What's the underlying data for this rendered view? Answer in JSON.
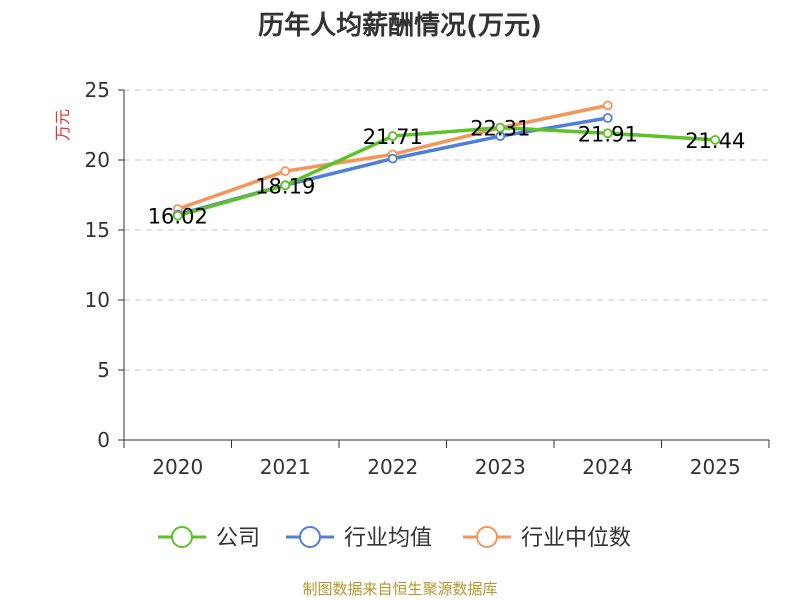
{
  "chart_data": {
    "type": "line",
    "title": "历年人均薪酬情况(万元)",
    "ylabel": "万元",
    "xlabel": "",
    "categories": [
      "2020",
      "2021",
      "2022",
      "2023",
      "2024",
      "2025"
    ],
    "ylim": [
      0,
      25
    ],
    "yticks": [
      0,
      5,
      10,
      15,
      20,
      25
    ],
    "grid": true,
    "legend_position": "bottom",
    "series": [
      {
        "name": "公司",
        "color": "#5cc228",
        "values": [
          16.02,
          18.19,
          21.71,
          22.31,
          21.91,
          21.44
        ],
        "labels": [
          "16.02",
          "18.19",
          "21.71",
          "22.31",
          "21.91",
          "21.44"
        ]
      },
      {
        "name": "行业均值",
        "color": "#4f7fda",
        "values": [
          16.1,
          18.2,
          20.1,
          21.7,
          23.0,
          null
        ]
      },
      {
        "name": "行业中位数",
        "color": "#f5955a",
        "values": [
          16.5,
          19.2,
          20.4,
          22.3,
          23.9,
          null
        ]
      }
    ],
    "source": "制图数据来自恒生聚源数据库"
  }
}
